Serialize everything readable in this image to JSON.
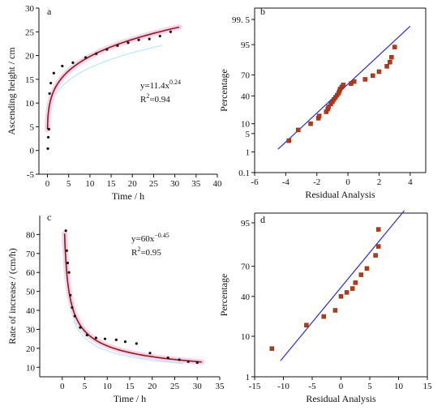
{
  "chart_data": [
    {
      "panel": "a",
      "type": "scatter",
      "xlabel": "Time / h",
      "ylabel": "Ascending height / cm",
      "xlim": [
        -2,
        40
      ],
      "ylim": [
        -5,
        30
      ],
      "xticks": [
        0,
        5,
        10,
        15,
        20,
        25,
        30,
        35,
        40
      ],
      "yticks": [
        -5,
        0,
        5,
        10,
        15,
        20,
        25,
        30
      ],
      "points": [
        [
          0.1,
          0.4
        ],
        [
          0.2,
          2.8
        ],
        [
          0.35,
          4.5
        ],
        [
          0.5,
          12
        ],
        [
          0.8,
          14.2
        ],
        [
          1.5,
          16.3
        ],
        [
          3.5,
          17.8
        ],
        [
          6,
          18.5
        ],
        [
          9,
          19.6
        ],
        [
          11.5,
          20.4
        ],
        [
          14,
          21.3
        ],
        [
          16.5,
          22.1
        ],
        [
          19,
          22.7
        ],
        [
          21.5,
          23.3
        ],
        [
          24,
          23.5
        ],
        [
          26.5,
          24.1
        ],
        [
          29,
          25
        ]
      ],
      "equation": {
        "base": "y=11.4x",
        "exp": "0.24"
      },
      "r2": {
        "base": "R",
        "sup": "2",
        "val": "=0.94"
      },
      "fit": {
        "coef": 11.4,
        "exp": 0.24,
        "xmin": 0.02,
        "xmax": 31
      }
    },
    {
      "panel": "b",
      "type": "scatter",
      "xlabel": "Residual Analysis",
      "ylabel": "Percentage",
      "xlim": [
        -6,
        5
      ],
      "xticks": [
        -6,
        -4,
        -2,
        0,
        2,
        4
      ],
      "yticks": [
        0.1,
        1,
        5,
        10,
        40,
        70,
        95,
        99.5
      ],
      "yticklabels": [
        "0.1",
        "1",
        "5",
        "10",
        "40",
        "70",
        "95",
        "99. 5"
      ],
      "points": [
        [
          -3.8,
          2.8
        ],
        [
          -3.2,
          6.5
        ],
        [
          -2.4,
          10
        ],
        [
          -1.9,
          14
        ],
        [
          -1.85,
          16
        ],
        [
          -1.4,
          20
        ],
        [
          -1.3,
          23
        ],
        [
          -1.25,
          25.5
        ],
        [
          -1.1,
          29
        ],
        [
          -1.0,
          32
        ],
        [
          -0.9,
          35
        ],
        [
          -0.8,
          38
        ],
        [
          -0.7,
          41
        ],
        [
          -0.6,
          44
        ],
        [
          -0.55,
          47
        ],
        [
          -0.5,
          50
        ],
        [
          -0.4,
          53
        ],
        [
          -0.3,
          56
        ],
        [
          0.2,
          58
        ],
        [
          0.4,
          61
        ],
        [
          1.1,
          64
        ],
        [
          1.6,
          69
        ],
        [
          2.0,
          74
        ],
        [
          2.5,
          80
        ],
        [
          2.7,
          84
        ],
        [
          2.8,
          88
        ],
        [
          3.0,
          94
        ]
      ],
      "reference_line": [
        [
          -4.5,
          1.3
        ],
        [
          4.0,
          99
        ]
      ]
    },
    {
      "panel": "c",
      "type": "scatter",
      "xlabel": "Time / h",
      "ylabel": "Rate of increase / (cm/h)",
      "xlim": [
        -5,
        35
      ],
      "ylim": [
        5,
        90
      ],
      "xticks": [
        0,
        5,
        10,
        15,
        20,
        25,
        30,
        35
      ],
      "yticks": [
        10,
        20,
        30,
        40,
        50,
        60,
        70,
        80
      ],
      "points": [
        [
          0.8,
          82
        ],
        [
          1.0,
          71.5
        ],
        [
          1.2,
          65
        ],
        [
          1.5,
          60
        ],
        [
          1.8,
          48
        ],
        [
          2.2,
          41.5
        ],
        [
          2.8,
          37
        ],
        [
          4.0,
          31
        ],
        [
          5.5,
          27
        ],
        [
          7.5,
          25.5
        ],
        [
          9.5,
          25
        ],
        [
          12,
          24.5
        ],
        [
          14,
          23.5
        ],
        [
          16.5,
          22.5
        ],
        [
          19.5,
          17.5
        ],
        [
          23.5,
          15
        ],
        [
          26,
          14
        ],
        [
          28,
          13
        ],
        [
          30,
          12.5
        ]
      ],
      "equation": {
        "base": "y=60x",
        "exp": "−0.45"
      },
      "r2": {
        "base": "R",
        "sup": "2",
        "val": "=0.95"
      },
      "fit": {
        "coef": 60,
        "exp": -0.45,
        "xmin": 0.52,
        "xmax": 31
      }
    },
    {
      "panel": "d",
      "type": "scatter",
      "xlabel": "Residual Analysis",
      "ylabel": "Percentage",
      "xlim": [
        -15,
        15
      ],
      "xticks": [
        -15,
        -10,
        -5,
        0,
        5,
        10,
        15
      ],
      "yticks": [
        1,
        10,
        40,
        70,
        95
      ],
      "points": [
        [
          -12,
          5.5
        ],
        [
          -6,
          16
        ],
        [
          -3,
          22
        ],
        [
          -1,
          27
        ],
        [
          0,
          40
        ],
        [
          1,
          44
        ],
        [
          2,
          48
        ],
        [
          2.5,
          54
        ],
        [
          3.5,
          62
        ],
        [
          4.5,
          68
        ],
        [
          6,
          79
        ],
        [
          6.5,
          85
        ],
        [
          6.5,
          93
        ]
      ],
      "reference_line": [
        [
          -10.5,
          2.8
        ],
        [
          11,
          97.5
        ]
      ]
    }
  ]
}
